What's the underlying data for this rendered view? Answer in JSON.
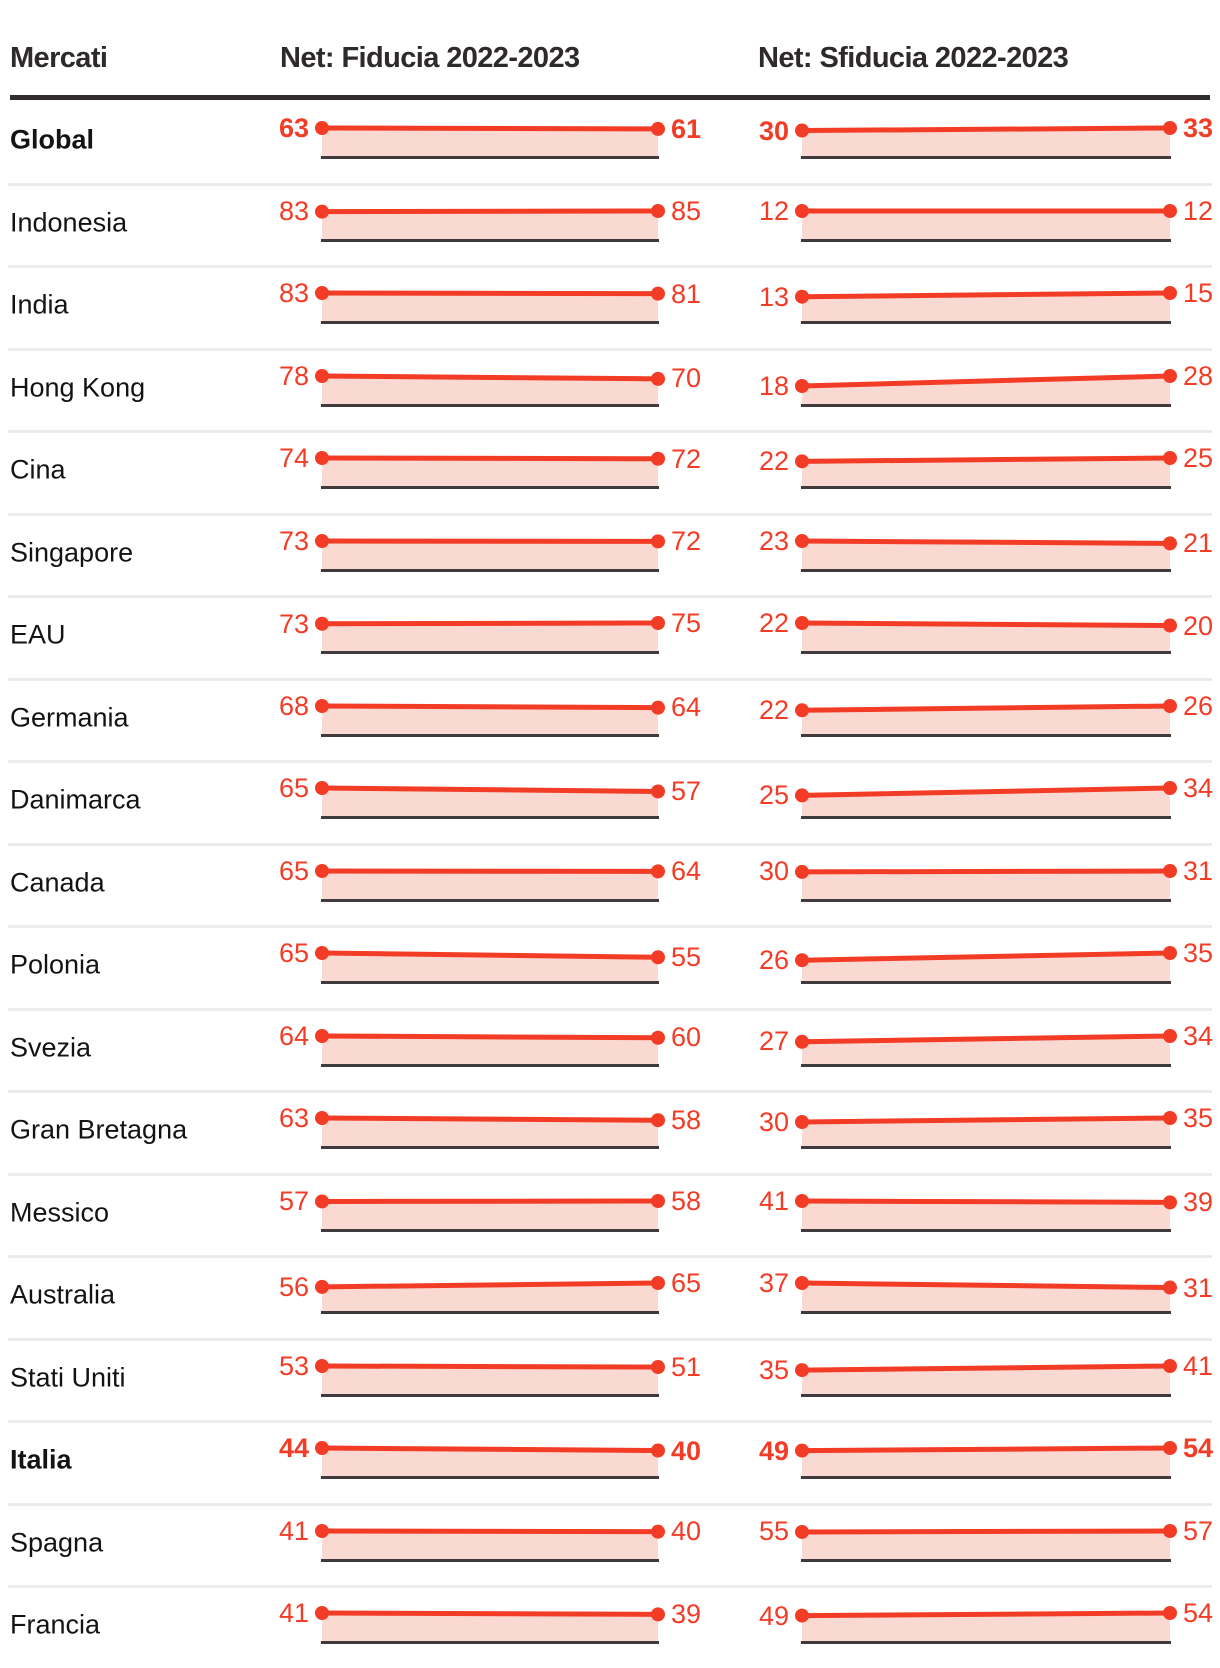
{
  "header": {
    "market_col": "Mercati",
    "fiducia_col": "Net: Fiducia 2022-2023",
    "sfiducia_col": "Net: Sfiducia 2022-2023"
  },
  "chart_data": {
    "type": "slope",
    "years": [
      "2022",
      "2023"
    ],
    "columns": [
      "Net: Fiducia 2022-2023",
      "Net: Sfiducia 2022-2023"
    ],
    "value_scale_note": "each mini slope chart is self-scaled: larger of the two values sits at fixed height above baseline",
    "rows": [
      {
        "market": "Global",
        "bold": true,
        "fiducia": [
          63,
          61
        ],
        "sfiducia": [
          30,
          33
        ]
      },
      {
        "market": "Indonesia",
        "bold": false,
        "fiducia": [
          83,
          85
        ],
        "sfiducia": [
          12,
          12
        ]
      },
      {
        "market": "India",
        "bold": false,
        "fiducia": [
          83,
          81
        ],
        "sfiducia": [
          13,
          15
        ]
      },
      {
        "market": "Hong Kong",
        "bold": false,
        "fiducia": [
          78,
          70
        ],
        "sfiducia": [
          18,
          28
        ]
      },
      {
        "market": "Cina",
        "bold": false,
        "fiducia": [
          74,
          72
        ],
        "sfiducia": [
          22,
          25
        ]
      },
      {
        "market": "Singapore",
        "bold": false,
        "fiducia": [
          73,
          72
        ],
        "sfiducia": [
          23,
          21
        ]
      },
      {
        "market": "EAU",
        "bold": false,
        "fiducia": [
          73,
          75
        ],
        "sfiducia": [
          22,
          20
        ]
      },
      {
        "market": "Germania",
        "bold": false,
        "fiducia": [
          68,
          64
        ],
        "sfiducia": [
          22,
          26
        ]
      },
      {
        "market": "Danimarca",
        "bold": false,
        "fiducia": [
          65,
          57
        ],
        "sfiducia": [
          25,
          34
        ]
      },
      {
        "market": "Canada",
        "bold": false,
        "fiducia": [
          65,
          64
        ],
        "sfiducia": [
          30,
          31
        ]
      },
      {
        "market": "Polonia",
        "bold": false,
        "fiducia": [
          65,
          55
        ],
        "sfiducia": [
          26,
          35
        ]
      },
      {
        "market": "Svezia",
        "bold": false,
        "fiducia": [
          64,
          60
        ],
        "sfiducia": [
          27,
          34
        ]
      },
      {
        "market": "Gran Bretagna",
        "bold": false,
        "fiducia": [
          63,
          58
        ],
        "sfiducia": [
          30,
          35
        ]
      },
      {
        "market": "Messico",
        "bold": false,
        "fiducia": [
          57,
          58
        ],
        "sfiducia": [
          41,
          39
        ]
      },
      {
        "market": "Australia",
        "bold": false,
        "fiducia": [
          56,
          65
        ],
        "sfiducia": [
          37,
          31
        ]
      },
      {
        "market": "Stati Uniti",
        "bold": false,
        "fiducia": [
          53,
          51
        ],
        "sfiducia": [
          35,
          41
        ]
      },
      {
        "market": "Italia",
        "bold": true,
        "fiducia": [
          44,
          40
        ],
        "sfiducia": [
          49,
          54
        ]
      },
      {
        "market": "Spagna",
        "bold": false,
        "fiducia": [
          41,
          40
        ],
        "sfiducia": [
          55,
          57
        ]
      },
      {
        "market": "Francia",
        "bold": false,
        "fiducia": [
          41,
          39
        ],
        "sfiducia": [
          49,
          54
        ]
      }
    ]
  },
  "style": {
    "accent_red": "#f23c26",
    "area_fill": "#fbd9d3",
    "baseline_color": "#3f3b3c",
    "header_rule_color": "#322d30",
    "separator_color": "#ebebeb",
    "header_text_color": "#2e292c",
    "text_color": "#131313"
  }
}
